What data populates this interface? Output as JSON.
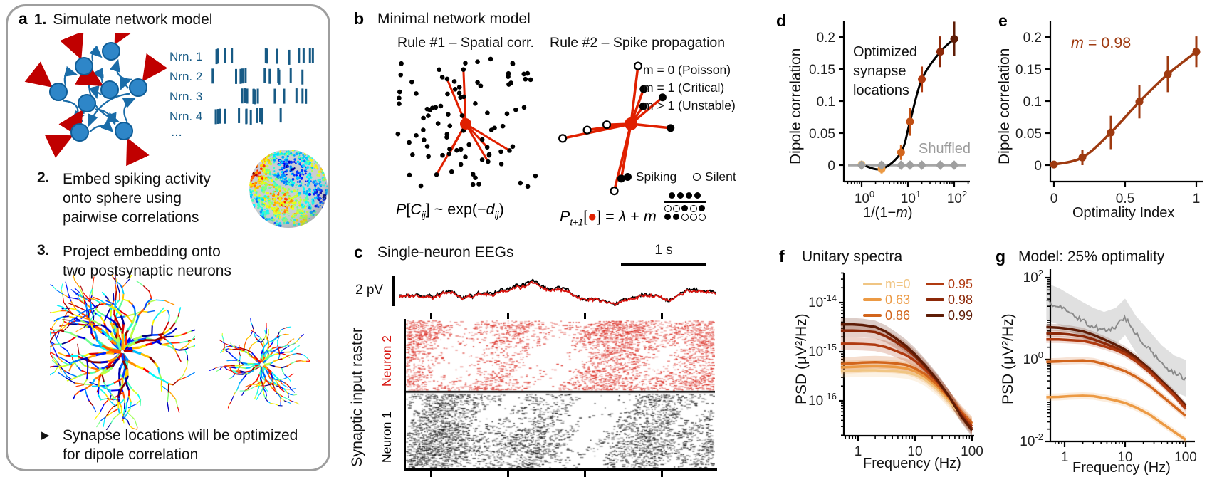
{
  "colors": {
    "spike_blue": "#175A85",
    "node_blue": "#2E86C8",
    "node_border": "#0F5D97",
    "arrow_blue": "#1A6CA8",
    "input_red": "#C00000",
    "hub_red": "#E02000",
    "trace_red": "#D81510",
    "brown": "#9E3A10",
    "gray_shuffled": "#A6A6A6",
    "panel_border_gray": "#9E9E9E"
  },
  "panel_a": {
    "label": "a",
    "step1_num": "1.",
    "step1_text": "Simulate network model",
    "raster_labels": [
      "Nrn. 1",
      "Nrn. 2",
      "Nrn. 3",
      "Nrn. 4"
    ],
    "raster_ellipsis": "...",
    "step2_num": "2.",
    "step2_lines": [
      "Embed spiking activity",
      "onto sphere using",
      "pairwise correlations"
    ],
    "step3_num": "3.",
    "step3_lines": [
      "Project embedding onto",
      "two postsynaptic neurons"
    ],
    "bullet_marker": "▶",
    "bullet_lines": [
      "Synapse locations will be optimized",
      "for dipole correlation"
    ]
  },
  "panel_b": {
    "label": "b",
    "title": "Minimal network model",
    "rule1": "Rule #1 – Spatial corr.",
    "rule2": "Rule #2 – Spike propagation",
    "m_lines": [
      "m = 0 (Poisson)",
      "m = 1 (Critical)",
      "m > 1 (Unstable)"
    ],
    "legend_spiking": "Spiking",
    "legend_silent": "Silent",
    "eq1_segments": [
      {
        "t": "P",
        "italic": true
      },
      {
        "t": "[",
        "italic": false
      },
      {
        "t": "C",
        "italic": true
      },
      {
        "t": "ij",
        "sub": true,
        "italic": true
      },
      {
        "t": "] ~ exp(−",
        "italic": false
      },
      {
        "t": "d",
        "italic": true
      },
      {
        "t": "ij",
        "sub": true,
        "italic": true
      },
      {
        "t": ")",
        "italic": false
      }
    ],
    "eq2_segments": [
      {
        "t": "P",
        "italic": true
      },
      {
        "t": "t+1",
        "sub": true,
        "italic": true
      },
      {
        "t": "[",
        "italic": false
      },
      {
        "t": "●",
        "color": "#E02000"
      },
      {
        "t": "] = ",
        "italic": false
      },
      {
        "t": "λ",
        "italic": true
      },
      {
        "t": " + ",
        "italic": false
      },
      {
        "t": "m",
        "italic": true
      }
    ],
    "fraction": {
      "numerator": [
        "f",
        "f",
        "f",
        "f"
      ],
      "denominator": [
        [
          "o",
          "o",
          "f",
          "o",
          "f"
        ],
        [
          "f",
          "f",
          "o",
          "o",
          "o"
        ]
      ]
    }
  },
  "panel_c": {
    "label": "c",
    "title": "Single-neuron EEGs",
    "scalebar_time": "1 s",
    "scalebar_amp": "2 pV",
    "ylabel": "Synaptic input raster",
    "neuron2": "Neuron 2",
    "neuron1": "Neuron 1"
  },
  "chart_data": {
    "d": {
      "type": "scatter",
      "panel_label": "d",
      "ylabel": "Dipole correlation",
      "xlabel_parts": [
        "1/(1−",
        "m",
        ")"
      ],
      "xscale": "log",
      "xlim": [
        0.8,
        200
      ],
      "ylim": [
        -0.01,
        0.22
      ],
      "ytick_labels": [
        "0",
        "0.05",
        "0.1",
        "0.15",
        "0.2"
      ],
      "yticks": [
        0,
        0.05,
        0.1,
        0.15,
        0.2
      ],
      "xtick_exponents": [
        0,
        1,
        2
      ],
      "annotation_lines": [
        "Optimized",
        "synapse",
        "locations"
      ],
      "shuffled_label": "Shuffled",
      "optimized": {
        "x": [
          1,
          2.7,
          7.1,
          11.1,
          20,
          50,
          100
        ],
        "y": [
          0.001,
          -0.006,
          0.02,
          0.068,
          0.134,
          0.177,
          0.197
        ],
        "yerr": [
          0.004,
          0.007,
          0.012,
          0.022,
          0.02,
          0.024,
          0.027
        ],
        "point_colors": [
          "#F0C583",
          "#EC9A44",
          "#D2651C",
          "#C04F14",
          "#B03A10",
          "#8C2808",
          "#5E1C06"
        ],
        "line_color": "#000000"
      },
      "shuffled": {
        "x": [
          1,
          2.7,
          7.1,
          11.1,
          20,
          50,
          100
        ],
        "y": [
          0,
          0,
          0,
          0,
          0,
          0,
          0
        ],
        "color": "#A6A6A6"
      }
    },
    "e": {
      "type": "scatter",
      "panel_label": "e",
      "ylabel": "Dipole correlation",
      "xlabel": "Optimality Index",
      "annotation_parts": [
        "m",
        " = 0.98"
      ],
      "xlim": [
        0,
        1
      ],
      "ylim": [
        -0.01,
        0.22
      ],
      "ytick_labels": [
        "0",
        "0.05",
        "0.1",
        "0.15",
        "0.2"
      ],
      "yticks": [
        0,
        0.05,
        0.1,
        0.15,
        0.2
      ],
      "xticks": [
        0,
        0.5,
        1
      ],
      "xtick_labels": [
        "0",
        "0.5",
        "1"
      ],
      "series": {
        "x": [
          0,
          0.2,
          0.4,
          0.6,
          0.8,
          1
        ],
        "y": [
          0.001,
          0.012,
          0.051,
          0.099,
          0.142,
          0.177
        ],
        "yerr": [
          0.003,
          0.012,
          0.026,
          0.026,
          0.028,
          0.024
        ],
        "color": "#9E3A10"
      }
    },
    "f": {
      "type": "line",
      "panel_label": "f",
      "title": "Unitary spectra",
      "ylabel": "PSD (μV²/Hz)",
      "xlabel": "Frequency (Hz)",
      "xscale": "log",
      "yscale": "log",
      "ytick_exponents": [
        -14,
        -15,
        -16
      ],
      "xticks": [
        1,
        10,
        100
      ],
      "xtick_labels": [
        "1",
        "10",
        "100"
      ],
      "freq": [
        0.5,
        0.8,
        1.2,
        2,
        3,
        4.5,
        7,
        10,
        15,
        25,
        40,
        65,
        100
      ],
      "series": [
        {
          "label": "m=0",
          "color": "#F0C583",
          "psd": [
            4e-16,
            4.1e-16,
            4.2e-16,
            4.2e-16,
            4.1e-16,
            4e-16,
            3.8e-16,
            3.4e-16,
            2.7e-16,
            1.7e-16,
            9.5e-17,
            5e-17,
            3e-17
          ]
        },
        {
          "label": "0.63",
          "color": "#EC9A44",
          "psd": [
            4.8e-16,
            4.9e-16,
            5e-16,
            5.1e-16,
            5e-16,
            4.9e-16,
            4.6e-16,
            4e-16,
            3.1e-16,
            1.9e-16,
            1.05e-16,
            5.5e-17,
            3.3e-17
          ]
        },
        {
          "label": "0.86",
          "color": "#D2651C",
          "psd": [
            5.6e-16,
            5.8e-16,
            6e-16,
            6.1e-16,
            6e-16,
            5.8e-16,
            5.4e-16,
            4.6e-16,
            3.5e-16,
            2.1e-16,
            1.15e-16,
            6e-17,
            3.5e-17
          ]
        },
        {
          "label": "0.95",
          "color": "#B03A10",
          "psd": [
            1.45e-15,
            1.45e-15,
            1.43e-15,
            1.38e-15,
            1.25e-15,
            1.05e-15,
            8.5e-16,
            6.5e-16,
            4.4e-16,
            2.4e-16,
            1.2e-16,
            5.5e-17,
            3e-17
          ]
        },
        {
          "label": "0.98",
          "color": "#8C2808",
          "psd": [
            2.7e-15,
            2.7e-15,
            2.65e-15,
            2.5e-15,
            2.1e-15,
            1.6e-15,
            1.15e-15,
            8e-16,
            5e-16,
            2.5e-16,
            1.2e-16,
            5e-17,
            2.7e-17
          ]
        },
        {
          "label": "0.99",
          "color": "#5E1C06",
          "psd": [
            3.6e-15,
            3.6e-15,
            3.5e-15,
            3.2e-15,
            2.6e-15,
            1.9e-15,
            1.3e-15,
            8.8e-16,
            5.3e-16,
            2.6e-16,
            1.2e-16,
            4.8e-17,
            2.5e-17
          ]
        }
      ]
    },
    "g": {
      "type": "line",
      "panel_label": "g",
      "title": "Model: 25% optimality",
      "ylabel": "PSD (μV²/Hz)",
      "xlabel": "Frequency (Hz)",
      "xscale": "log",
      "yscale": "log",
      "ytick_exponents": [
        2,
        0,
        -2
      ],
      "xticks": [
        1,
        10,
        100
      ],
      "xtick_labels": [
        "1",
        "10",
        "100"
      ],
      "freq": [
        0.5,
        0.8,
        1.2,
        2,
        3,
        4.5,
        7,
        10,
        15,
        25,
        40,
        65,
        100
      ],
      "experimental": {
        "color": "#8A8A8A",
        "band_factor": 2.8,
        "psd": [
          26,
          20,
          14,
          9,
          6.5,
          5.2,
          6.5,
          11,
          4.2,
          1.8,
          0.8,
          0.45,
          0.35
        ]
      },
      "series": [
        {
          "label": "0.99",
          "color": "#5E1C06",
          "psd": [
            6.2,
            6.0,
            5.6,
            4.9,
            4.0,
            3.1,
            2.3,
            1.75,
            1.15,
            0.6,
            0.3,
            0.15,
            0.075
          ]
        },
        {
          "label": "0.98",
          "color": "#8C2808",
          "psd": [
            4.4,
            4.3,
            4.1,
            3.7,
            3.1,
            2.5,
            1.95,
            1.5,
            1.0,
            0.55,
            0.27,
            0.14,
            0.068
          ]
        },
        {
          "label": "0.95",
          "color": "#B03A10",
          "psd": [
            3.1,
            3.1,
            3.0,
            2.85,
            2.5,
            2.1,
            1.7,
            1.35,
            0.92,
            0.5,
            0.26,
            0.13,
            0.062
          ]
        },
        {
          "label": "0.86",
          "color": "#D2651C",
          "psd": [
            0.88,
            0.9,
            0.93,
            0.95,
            0.9,
            0.78,
            0.63,
            0.52,
            0.38,
            0.23,
            0.13,
            0.072,
            0.042
          ]
        },
        {
          "label": "0.63",
          "color": "#EC9A44",
          "psd": [
            0.12,
            0.122,
            0.127,
            0.13,
            0.127,
            0.115,
            0.1,
            0.087,
            0.068,
            0.046,
            0.028,
            0.017,
            0.011
          ]
        }
      ]
    }
  }
}
